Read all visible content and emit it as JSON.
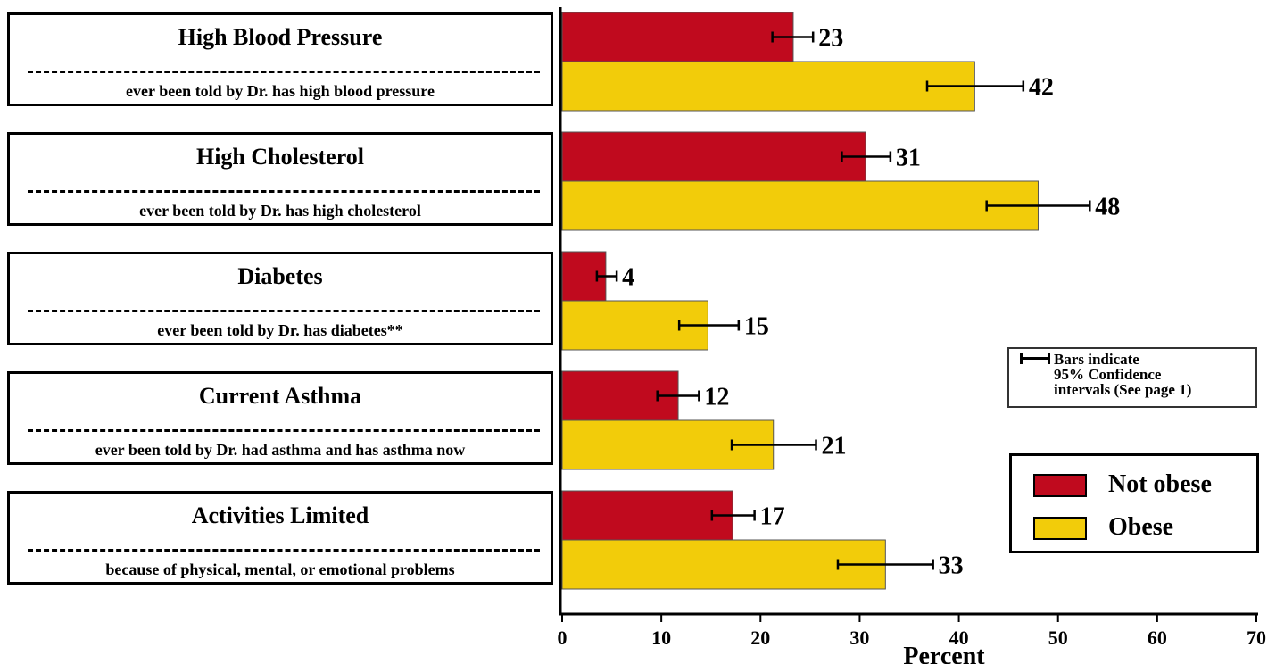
{
  "chart_data": {
    "type": "bar",
    "orientation": "horizontal",
    "categories": [
      {
        "title": "High Blood Pressure",
        "subtitle": "ever been told by Dr. has high blood pressure"
      },
      {
        "title": "High Cholesterol",
        "subtitle": "ever been told by Dr. has high cholesterol"
      },
      {
        "title": "Diabetes",
        "subtitle": "ever been told by Dr. has diabetes**"
      },
      {
        "title": "Current Asthma",
        "subtitle": "ever been told by Dr. had asthma and has asthma now"
      },
      {
        "title": "Activities Limited",
        "subtitle": "because of physical, mental, or emotional problems"
      }
    ],
    "series": [
      {
        "name": "Not obese",
        "color": "#c00a1e",
        "values": [
          23.3,
          30.6,
          4.4,
          11.7,
          17.2
        ],
        "labels": [
          "23",
          "31",
          "4",
          "12",
          "17"
        ],
        "ci": [
          [
            21.2,
            25.3
          ],
          [
            28.2,
            33.1
          ],
          [
            3.5,
            5.5
          ],
          [
            9.6,
            13.8
          ],
          [
            15.1,
            19.4
          ]
        ]
      },
      {
        "name": "Obese",
        "color": "#f2cc0a",
        "values": [
          41.6,
          48.0,
          14.7,
          21.3,
          32.6
        ],
        "labels": [
          "42",
          "48",
          "15",
          "21",
          "33"
        ],
        "ci": [
          [
            36.8,
            46.5
          ],
          [
            42.8,
            53.2
          ],
          [
            11.8,
            17.8
          ],
          [
            17.1,
            25.6
          ],
          [
            27.8,
            37.4
          ]
        ]
      }
    ],
    "xlabel": "Percent",
    "xlim": [
      0,
      70
    ],
    "xticks": [
      "0",
      "10",
      "20",
      "30",
      "40",
      "50",
      "60",
      "70"
    ],
    "grid": false,
    "legend_placement": "bottom-right"
  },
  "ci_legend": "Bars indicate\n95% Confidence\nintervals (See page 1)"
}
